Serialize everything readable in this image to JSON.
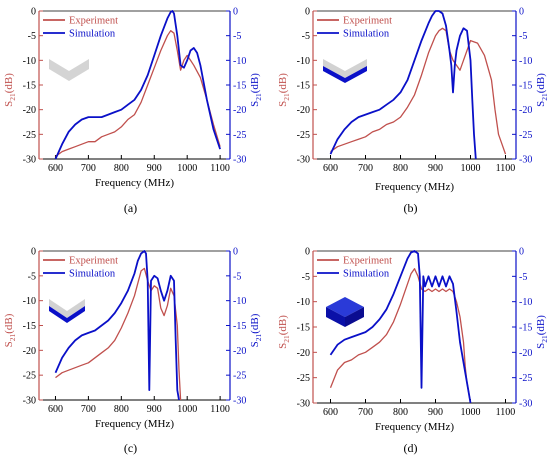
{
  "colors": {
    "experiment": "#c0504d",
    "simulation": "#0a10c8",
    "axis": "#000000"
  },
  "chart_data": [
    {
      "type": "line",
      "panel_label": "(a)",
      "xlabel": "Frequency (MHz)",
      "ylabel_left": "S21(dB)",
      "ylabel_right": "S21(dB)",
      "xlim": [
        550,
        1130
      ],
      "ylim": [
        -30,
        0
      ],
      "xticks": [
        "600",
        "700",
        "800",
        "900",
        "1000",
        "1100"
      ],
      "yticks": [
        "0",
        "-5",
        "-10",
        "-15",
        "-20",
        "-25",
        "-30"
      ],
      "legend": [
        "Experiment",
        "Simulation"
      ],
      "legend_placement": "top-left",
      "inset_icon": "light-gray-chevron-icon",
      "series": [
        {
          "key": "experiment",
          "x": [
            600,
            620,
            640,
            660,
            680,
            700,
            720,
            740,
            760,
            780,
            800,
            820,
            840,
            860,
            880,
            900,
            920,
            940,
            950,
            960,
            970,
            980,
            990,
            1000,
            1010,
            1020,
            1040,
            1060,
            1080,
            1100
          ],
          "y": [
            -29.5,
            -28.5,
            -28,
            -27.5,
            -27,
            -26.5,
            -26.5,
            -25.5,
            -25,
            -24.5,
            -23.5,
            -22,
            -21,
            -18.5,
            -15,
            -11.5,
            -8,
            -5,
            -4,
            -4.5,
            -8,
            -12,
            -10,
            -9,
            -10,
            -11,
            -13.5,
            -18,
            -23,
            -27.5
          ]
        },
        {
          "key": "simulation",
          "x": [
            600,
            620,
            640,
            660,
            680,
            700,
            720,
            740,
            760,
            780,
            800,
            820,
            840,
            860,
            880,
            900,
            920,
            940,
            950,
            955,
            960,
            970,
            980,
            990,
            1000,
            1010,
            1020,
            1030,
            1040,
            1060,
            1080,
            1100
          ],
          "y": [
            -30,
            -27,
            -24.5,
            -23,
            -22,
            -21.5,
            -21.5,
            -21.5,
            -21,
            -20.5,
            -20,
            -19,
            -18,
            -16,
            -13,
            -9,
            -5,
            -1.5,
            -0.2,
            0,
            -0.5,
            -5,
            -11,
            -11.5,
            -10,
            -8,
            -7.5,
            -8.5,
            -11,
            -18,
            -24,
            -28
          ]
        }
      ]
    },
    {
      "type": "line",
      "panel_label": "(b)",
      "xlabel": "Frequency (MHz)",
      "ylabel_left": "S21(dB)",
      "ylabel_right": "S21(dB)",
      "xlim": [
        550,
        1130
      ],
      "ylim": [
        -30,
        0
      ],
      "xticks": [
        "600",
        "700",
        "800",
        "900",
        "1000",
        "1100"
      ],
      "yticks": [
        "0",
        "-5",
        "-10",
        "-15",
        "-20",
        "-25",
        "-30"
      ],
      "legend": [
        "Experiment",
        "Simulation"
      ],
      "legend_placement": "top-left",
      "inset_icon": "blue-chevron-icon",
      "series": [
        {
          "key": "experiment",
          "x": [
            600,
            620,
            640,
            660,
            680,
            700,
            720,
            740,
            760,
            780,
            800,
            820,
            840,
            860,
            880,
            900,
            910,
            920,
            930,
            940,
            950,
            960,
            970,
            980,
            990,
            1000,
            1020,
            1040,
            1060,
            1070,
            1080,
            1090,
            1100
          ],
          "y": [
            -28.5,
            -27.5,
            -27,
            -26.5,
            -26,
            -25.5,
            -24.5,
            -24,
            -23,
            -22.5,
            -21.5,
            -19.5,
            -17,
            -13,
            -8.5,
            -5,
            -4,
            -3.5,
            -4,
            -8,
            -10,
            -11,
            -12,
            -10,
            -8,
            -6,
            -6.5,
            -9,
            -14,
            -20,
            -25,
            -27,
            -29
          ]
        },
        {
          "key": "simulation",
          "x": [
            600,
            620,
            640,
            660,
            680,
            700,
            720,
            740,
            760,
            780,
            800,
            820,
            840,
            860,
            880,
            890,
            900,
            910,
            920,
            930,
            940,
            945,
            950,
            955,
            960,
            970,
            980,
            990,
            1000,
            1005,
            1010,
            1015
          ],
          "y": [
            -29,
            -26,
            -24,
            -22.5,
            -21.5,
            -21,
            -20.5,
            -20,
            -19,
            -18,
            -16.5,
            -14,
            -10,
            -6,
            -2.5,
            -1,
            0,
            0,
            -0.5,
            -3,
            -8,
            -11,
            -16.5,
            -11,
            -8,
            -5,
            -3.5,
            -4,
            -10,
            -18,
            -25,
            -30
          ]
        }
      ]
    },
    {
      "type": "line",
      "panel_label": "(c)",
      "xlabel": "Frequency (MHz)",
      "ylabel_left": "S21(dB)",
      "ylabel_right": "S21(dB)",
      "xlim": [
        550,
        1130
      ],
      "ylim": [
        -30,
        0
      ],
      "xticks": [
        "600",
        "700",
        "800",
        "900",
        "1000",
        "1100"
      ],
      "yticks": [
        "0",
        "-5",
        "-10",
        "-15",
        "-20",
        "-25",
        "-30"
      ],
      "legend": [
        "Experiment",
        "Simulation"
      ],
      "legend_placement": "top-left",
      "inset_icon": "blue-chevron-slab-icon",
      "series": [
        {
          "key": "experiment",
          "x": [
            600,
            620,
            640,
            660,
            680,
            700,
            720,
            740,
            760,
            780,
            800,
            820,
            840,
            850,
            860,
            870,
            880,
            890,
            900,
            910,
            920,
            930,
            940,
            950,
            960,
            970,
            975,
            980
          ],
          "y": [
            -25.5,
            -24.5,
            -24,
            -23.5,
            -23,
            -22.5,
            -21.5,
            -20.5,
            -19.5,
            -18,
            -15.5,
            -12.5,
            -9,
            -6.5,
            -4,
            -3.5,
            -6,
            -8,
            -7,
            -7.5,
            -11.5,
            -13,
            -11,
            -7.5,
            -9,
            -15,
            -24,
            -30
          ]
        },
        {
          "key": "simulation",
          "x": [
            600,
            620,
            640,
            660,
            680,
            700,
            720,
            740,
            760,
            780,
            800,
            820,
            840,
            850,
            860,
            870,
            875,
            880,
            885,
            890,
            900,
            910,
            920,
            930,
            940,
            950,
            960,
            965,
            970,
            975
          ],
          "y": [
            -24.5,
            -21.5,
            -19.5,
            -18,
            -17,
            -16.5,
            -16,
            -15,
            -14,
            -12.5,
            -10.5,
            -8,
            -4.5,
            -2,
            -0.5,
            0,
            -0.5,
            -6,
            -28,
            -6,
            -5,
            -5.5,
            -8,
            -10,
            -8,
            -5,
            -6,
            -18,
            -28,
            -30
          ]
        }
      ]
    },
    {
      "type": "line",
      "panel_label": "(d)",
      "xlabel": "Frequency (MHz)",
      "ylabel_left": "S21(dB)",
      "ylabel_right": "S21(dB)",
      "xlim": [
        550,
        1130
      ],
      "ylim": [
        -30,
        0
      ],
      "xticks": [
        "600",
        "700",
        "800",
        "900",
        "1000",
        "1100"
      ],
      "yticks": [
        "0",
        "-5",
        "-10",
        "-15",
        "-20",
        "-25",
        "-30"
      ],
      "legend": [
        "Experiment",
        "Simulation"
      ],
      "legend_placement": "top-left",
      "inset_icon": "blue-cube-icon",
      "series": [
        {
          "key": "experiment",
          "x": [
            600,
            620,
            640,
            660,
            680,
            700,
            720,
            740,
            760,
            780,
            800,
            820,
            830,
            840,
            850,
            860,
            870,
            880,
            890,
            900,
            910,
            920,
            930,
            940,
            950,
            960,
            970,
            980,
            985,
            990,
            995,
            1000
          ],
          "y": [
            -27,
            -23.5,
            -22,
            -21.5,
            -20.5,
            -20,
            -19,
            -18,
            -16.5,
            -14,
            -10.5,
            -6.5,
            -4.5,
            -3.5,
            -5,
            -7.5,
            -8,
            -7.5,
            -8,
            -7.5,
            -8,
            -7.5,
            -8,
            -7.5,
            -8,
            -10,
            -13,
            -18,
            -23,
            -26,
            -28,
            -30
          ]
        },
        {
          "key": "simulation",
          "x": [
            600,
            620,
            640,
            660,
            680,
            700,
            720,
            740,
            760,
            780,
            800,
            820,
            830,
            840,
            850,
            855,
            860,
            865,
            870,
            880,
            890,
            900,
            910,
            920,
            930,
            940,
            950,
            960,
            970,
            980,
            990,
            1000
          ],
          "y": [
            -20.5,
            -18.5,
            -17.5,
            -17,
            -16.5,
            -16,
            -15,
            -13.5,
            -11.5,
            -8.5,
            -5,
            -1.5,
            -0.3,
            0,
            -0.5,
            -5,
            -27,
            -5,
            -7,
            -5,
            -7,
            -5,
            -7,
            -5,
            -7,
            -5,
            -6.5,
            -12,
            -18,
            -22,
            -26,
            -30
          ]
        }
      ]
    }
  ]
}
